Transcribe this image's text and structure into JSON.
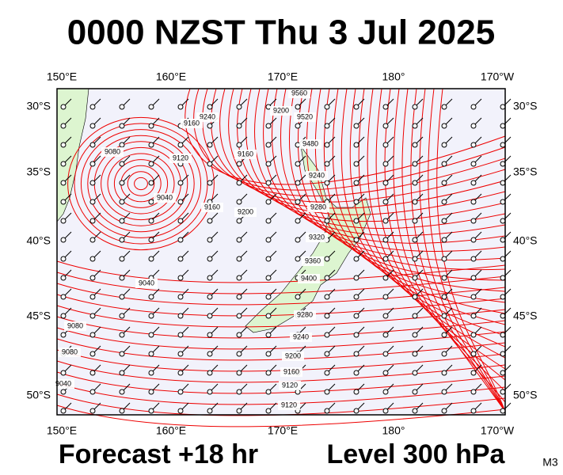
{
  "header": {
    "title": "0000 NZST Thu 3 Jul 2025"
  },
  "map": {
    "lon_labels": [
      "150°E",
      "160°E",
      "170°E",
      "180°",
      "170°W"
    ],
    "lat_labels": [
      "30°S",
      "35°S",
      "40°S",
      "45°S",
      "50°S"
    ],
    "contour_labels": [
      "9560",
      "9520",
      "9480",
      "9240",
      "9160",
      "9120",
      "9080",
      "9040",
      "9200",
      "9160",
      "9240",
      "9280",
      "9320",
      "9360",
      "9400",
      "9280",
      "9240",
      "9200",
      "9160",
      "9120",
      "9080",
      "9040",
      "9080",
      "9040",
      "9200",
      "9160",
      "9120"
    ]
  },
  "footer": {
    "forecast": "Forecast +18 hr",
    "level": "Level 300 hPa",
    "model": "M3"
  }
}
